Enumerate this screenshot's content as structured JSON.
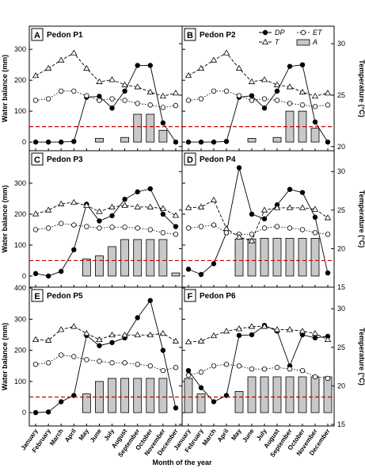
{
  "xlabel": "Month of the year",
  "ylabel": "Water balance (mm)",
  "y2label": "Temperature (°C)",
  "categories": [
    "January",
    "February",
    "March",
    "April",
    "May",
    "June",
    "July",
    "August",
    "September",
    "October",
    "November",
    "December"
  ],
  "chart_data": [
    {
      "type": "bar",
      "letter": "A",
      "title": "Pedon P1",
      "ylim": [
        -28,
        375
      ],
      "yticks": [
        0,
        100,
        200,
        300
      ],
      "y2lim": [
        19.6,
        31.7
      ],
      "y2ticks": [
        20,
        25,
        30
      ],
      "threshold": 50,
      "threshold_color": "#cc0000",
      "series": [
        {
          "name": "A",
          "color": "#c8c8c8",
          "values": [
            null,
            null,
            null,
            null,
            null,
            12,
            null,
            15,
            90,
            90,
            38,
            null
          ]
        },
        {
          "name": "DP",
          "color": "#000000",
          "values": [
            0,
            0,
            0,
            2,
            145,
            148,
            110,
            165,
            248,
            248,
            62,
            0
          ]
        },
        {
          "name": "ET",
          "color": "#000000",
          "values": [
            135,
            140,
            165,
            165,
            150,
            135,
            140,
            135,
            125,
            120,
            112,
            118
          ]
        },
        {
          "name": "T",
          "color": "#000000",
          "axis": "y2",
          "values": [
            26.9,
            27.6,
            28.4,
            29.1,
            27.6,
            26.3,
            26.5,
            26.0,
            25.8,
            25.3,
            24.9,
            25.2
          ]
        }
      ]
    },
    {
      "type": "bar",
      "letter": "B",
      "title": "Pedon P2",
      "ylim": [
        -28,
        375
      ],
      "yticks": [
        0,
        100,
        200,
        300
      ],
      "y2lim": [
        19.6,
        31.7
      ],
      "y2ticks": [
        20,
        25,
        30
      ],
      "threshold": 50,
      "threshold_color": "#cc0000",
      "legend": "upper right",
      "series": [
        {
          "name": "A",
          "color": "#c8c8c8",
          "values": [
            null,
            null,
            null,
            null,
            null,
            12,
            null,
            15,
            100,
            100,
            45,
            null
          ]
        },
        {
          "name": "DP",
          "color": "#000000",
          "values": [
            0,
            0,
            0,
            2,
            145,
            150,
            110,
            165,
            245,
            250,
            65,
            0
          ]
        },
        {
          "name": "ET",
          "color": "#000000",
          "values": [
            135,
            140,
            165,
            165,
            150,
            135,
            140,
            135,
            125,
            120,
            115,
            120
          ]
        },
        {
          "name": "T",
          "color": "#000000",
          "axis": "y2",
          "values": [
            26.9,
            27.6,
            28.4,
            29.1,
            27.6,
            26.3,
            26.5,
            26.0,
            25.8,
            25.3,
            24.9,
            25.2
          ]
        }
      ]
    },
    {
      "type": "bar",
      "letter": "C",
      "title": "Pedon P3",
      "ylim": [
        -36,
        405
      ],
      "yticks": [
        0,
        100,
        200,
        300
      ],
      "y2lim": [
        15,
        32.7
      ],
      "y2ticks": [
        15,
        20,
        25,
        30
      ],
      "threshold": 50,
      "threshold_color": "#cc0000",
      "series": [
        {
          "name": "A",
          "color": "#c8c8c8",
          "values": [
            null,
            null,
            null,
            null,
            55,
            65,
            95,
            118,
            118,
            118,
            118,
            10
          ]
        },
        {
          "name": "DP",
          "color": "#000000",
          "values": [
            8,
            0,
            15,
            85,
            232,
            178,
            195,
            248,
            272,
            282,
            200,
            160
          ]
        },
        {
          "name": "ET",
          "color": "#000000",
          "values": [
            150,
            155,
            170,
            165,
            160,
            155,
            158,
            158,
            155,
            150,
            140,
            135
          ]
        },
        {
          "name": "T",
          "color": "#000000",
          "axis": "y2",
          "values": [
            24.5,
            25.0,
            25.8,
            26.0,
            25.6,
            24.8,
            25.4,
            25.6,
            25.4,
            25.4,
            25.2,
            24.3
          ]
        }
      ]
    },
    {
      "type": "bar",
      "letter": "D",
      "title": "Pedon P4",
      "ylim": [
        -36,
        405
      ],
      "yticks": [
        0,
        100,
        200,
        300
      ],
      "y2lim": [
        15,
        32.7
      ],
      "y2ticks": [
        15,
        20,
        25,
        30
      ],
      "threshold": 50,
      "threshold_color": "#cc0000",
      "series": [
        {
          "name": "A",
          "color": "#c8c8c8",
          "values": [
            null,
            null,
            null,
            null,
            120,
            120,
            122,
            122,
            122,
            122,
            122,
            null
          ]
        },
        {
          "name": "DP",
          "color": "#000000",
          "values": [
            22,
            5,
            40,
            140,
            350,
            200,
            185,
            230,
            280,
            270,
            190,
            10
          ]
        },
        {
          "name": "ET",
          "color": "#000000",
          "values": [
            155,
            160,
            165,
            140,
            135,
            135,
            155,
            160,
            155,
            150,
            140,
            135
          ]
        },
        {
          "name": "T",
          "color": "#000000",
          "axis": "y2",
          "values": [
            25.3,
            25.4,
            26.3,
            22.6,
            21.5,
            21.0,
            25.0,
            25.3,
            25.3,
            25.3,
            25.1,
            24.0
          ]
        }
      ]
    },
    {
      "type": "bar",
      "letter": "E",
      "title": "Pedon P5",
      "ylim": [
        -43,
        403
      ],
      "yticks": [
        0,
        100,
        200,
        300,
        400
      ],
      "y2lim": [
        14.8,
        32.8
      ],
      "y2ticks": [
        15,
        20,
        25,
        30
      ],
      "threshold": 50,
      "threshold_color": "#cc0000",
      "series": [
        {
          "name": "A",
          "color": "#c8c8c8",
          "values": [
            null,
            null,
            null,
            null,
            60,
            100,
            110,
            110,
            110,
            110,
            110,
            null
          ]
        },
        {
          "name": "DP",
          "color": "#000000",
          "values": [
            0,
            2,
            35,
            55,
            248,
            215,
            225,
            240,
            305,
            360,
            200,
            15
          ]
        },
        {
          "name": "ET",
          "color": "#000000",
          "values": [
            155,
            160,
            185,
            180,
            170,
            165,
            160,
            160,
            155,
            150,
            135,
            145
          ]
        },
        {
          "name": "T",
          "color": "#000000",
          "axis": "y2",
          "values": [
            26.0,
            25.9,
            27.3,
            27.7,
            26.8,
            26.0,
            26.6,
            26.6,
            26.6,
            26.6,
            26.8,
            25.8
          ]
        }
      ]
    },
    {
      "type": "bar",
      "letter": "F",
      "title": "Pedon P6",
      "ylim": [
        -43,
        403
      ],
      "yticks": [
        0,
        100,
        200,
        300,
        400
      ],
      "y2lim": [
        14.8,
        32.8
      ],
      "y2ticks": [
        15,
        20,
        25,
        30
      ],
      "threshold": 50,
      "threshold_color": "#cc0000",
      "series": [
        {
          "name": "A",
          "color": "#c8c8c8",
          "values": [
            110,
            60,
            null,
            null,
            68,
            115,
            115,
            115,
            115,
            115,
            115,
            115
          ]
        },
        {
          "name": "DP",
          "color": "#000000",
          "values": [
            135,
            80,
            35,
            55,
            248,
            250,
            280,
            262,
            150,
            250,
            240,
            245
          ]
        },
        {
          "name": "ET",
          "color": "#000000",
          "values": [
            120,
            130,
            150,
            155,
            150,
            140,
            140,
            145,
            140,
            135,
            115,
            110
          ]
        },
        {
          "name": "T",
          "color": "#000000",
          "axis": "y2",
          "values": [
            25.7,
            25.8,
            26.5,
            27.1,
            27.4,
            27.7,
            27.7,
            27.3,
            27.3,
            27.1,
            26.8,
            26.0
          ]
        }
      ]
    }
  ]
}
